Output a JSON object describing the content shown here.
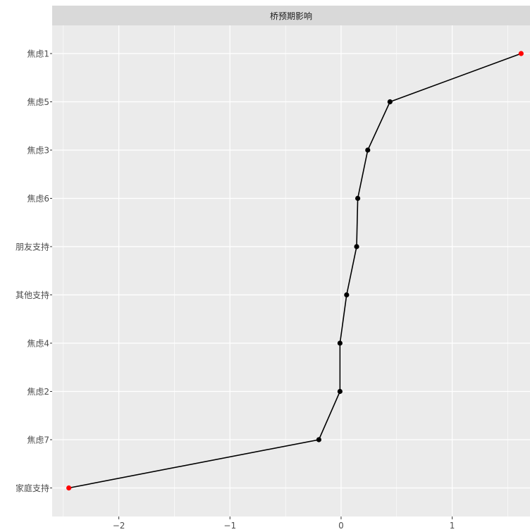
{
  "chart_data": {
    "type": "line",
    "title": "",
    "xlabel": "",
    "ylabel": "",
    "facet_label": "桥预期影响",
    "xlim": [
      -2.6,
      1.7
    ],
    "x_ticks": [
      -2,
      -1,
      0,
      1
    ],
    "x_tick_labels": [
      "−2",
      "−1",
      "0",
      "1"
    ],
    "categories": [
      "家庭支持",
      "焦虑7",
      "焦虑2",
      "焦虑4",
      "其他支持",
      "朋友支持",
      "焦虑6",
      "焦虑3",
      "焦虑5",
      "焦虑1"
    ],
    "values": [
      -2.45,
      -0.2,
      -0.01,
      -0.01,
      0.05,
      0.14,
      0.15,
      0.24,
      0.44,
      1.62
    ],
    "highlight": [
      true,
      false,
      false,
      false,
      false,
      false,
      false,
      false,
      false,
      true
    ],
    "colors": {
      "panel": "#ebebeb",
      "grid": "#ffffff",
      "strip": "#d9d9d9",
      "line": "#000000",
      "point": "#000000",
      "highlight": "#ff0000"
    },
    "grid": true,
    "legend": "none"
  }
}
